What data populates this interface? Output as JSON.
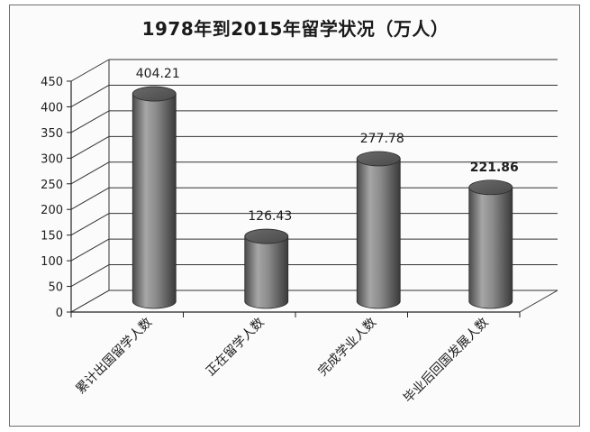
{
  "chart_data": {
    "type": "bar",
    "title": "1978年到2015年留学状况（万人）",
    "categories": [
      "累计出国留学人数",
      "正在留学人数",
      "完成学业人数",
      "毕业后回国发展人数"
    ],
    "values": [
      404.21,
      126.43,
      277.78,
      221.86
    ],
    "data_labels": [
      "404.21",
      "126.43",
      "277.78",
      "221.86"
    ],
    "ylim": [
      0,
      450
    ],
    "y_ticks": [
      "0",
      "50",
      "100",
      "150",
      "200",
      "250",
      "300",
      "350",
      "400",
      "450"
    ],
    "grid": true,
    "legend": "none",
    "bar_style": "3d-cylinder",
    "colors": {
      "bar": "#7f7f7f",
      "bar_dark": "#3f3f3f",
      "bar_light": "#cfcfcf",
      "grid": "#333333",
      "wall": "#ffffff"
    }
  }
}
